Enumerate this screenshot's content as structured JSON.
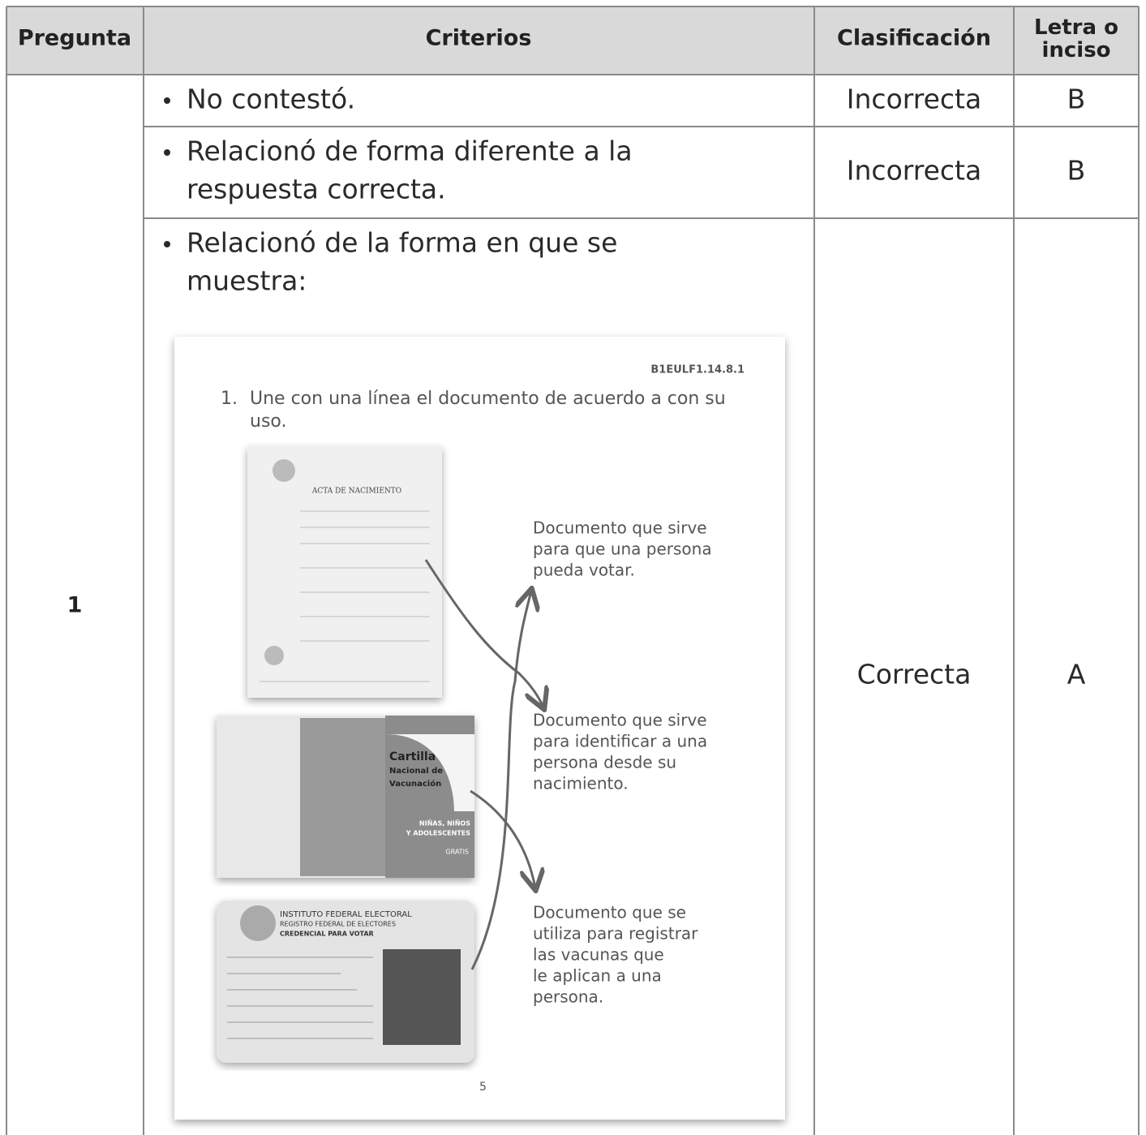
{
  "table": {
    "headers": [
      "Pregunta",
      "Criterios",
      "Clasificación",
      "Letra o inciso"
    ],
    "pregunta": "1",
    "rows": [
      {
        "criterio": [
          "No contestó."
        ],
        "clasificacion": "Incorrecta",
        "letra": "B"
      },
      {
        "criterio": [
          "Relacionó de forma diferente a la",
          "respuesta correcta."
        ],
        "clasificacion": "Incorrecta",
        "letra": "B"
      },
      {
        "criterio": [
          "Relacionó de la forma en que se",
          "muestra:"
        ],
        "clasificacion": "Correcta",
        "letra": "A"
      }
    ]
  },
  "worksheet": {
    "code": "B1EULF1.14.8.1",
    "number": "1.",
    "instruction": [
      "Une con una línea el documento de acuerdo a con su",
      "uso."
    ],
    "acta": "ACTA DE NACIMIENTO",
    "cartilla": [
      "Cartilla",
      "Nacional de",
      "Vacunación",
      "NIÑAS, NIÑOS",
      "Y ADOLESCENTES",
      "GRATIS"
    ],
    "credencial": [
      "INSTITUTO FEDERAL ELECTORAL",
      "REGISTRO FEDERAL DE ELECTORES",
      "CREDENCIAL PARA VOTAR"
    ],
    "descriptions": [
      [
        "Documento que sirve",
        "para que una persona",
        "pueda votar."
      ],
      [
        "Documento que sirve",
        "para identificar a una",
        "persona desde su",
        "nacimiento."
      ],
      [
        "Documento que se",
        "utiliza para registrar",
        "las vacunas que",
        "le aplican a una",
        "persona."
      ]
    ],
    "page": "5"
  }
}
